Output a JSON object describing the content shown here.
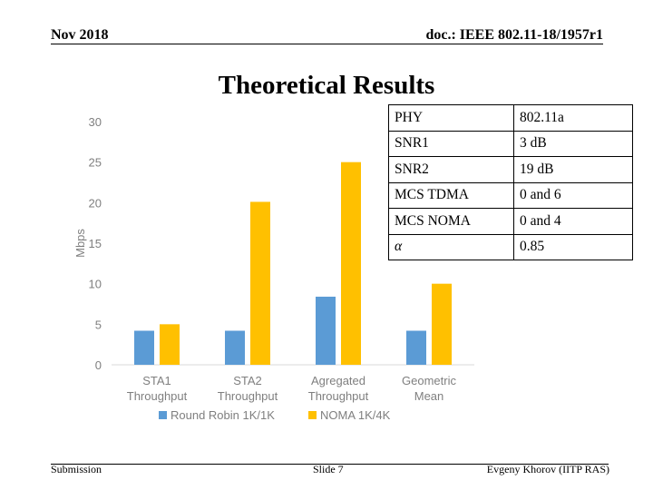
{
  "header": {
    "date": "Nov 2018",
    "doc": "doc.: IEEE 802.11-18/1957r1"
  },
  "title": "Theoretical Results",
  "chart_data": {
    "type": "bar",
    "categories": [
      [
        "STA1",
        "Throughput"
      ],
      [
        "STA2",
        "Throughput"
      ],
      [
        "Agregated",
        "Throughput"
      ],
      [
        "Geometric",
        "Mean"
      ]
    ],
    "series": [
      {
        "name": "Round Robin 1K/1K",
        "color": "#5b9bd5",
        "values": [
          4.2,
          4.2,
          8.4,
          4.2
        ]
      },
      {
        "name": "NOMA 1K/4K",
        "color": "#ffc000",
        "values": [
          5.0,
          20.1,
          25.0,
          10.0
        ]
      }
    ],
    "ylabel": "Mbps",
    "ylim": [
      0,
      30
    ],
    "yticks": [
      "0",
      "5",
      "10",
      "15",
      "20",
      "25",
      "30"
    ],
    "grid": false,
    "legend": "bottom"
  },
  "params": [
    {
      "name": "PHY",
      "value": "802.11a"
    },
    {
      "name": "SNR1",
      "value": "3 dB"
    },
    {
      "name": "SNR2",
      "value": "19 dB"
    },
    {
      "name": "MCS TDMA",
      "value": "0 and 6"
    },
    {
      "name": "MCS NOMA",
      "value": "0 and 4"
    },
    {
      "name": "α",
      "value": "0.85"
    }
  ],
  "footer": {
    "left": "Submission",
    "center": "Slide 7",
    "right": "Evgeny Khorov (IITP RAS)"
  }
}
